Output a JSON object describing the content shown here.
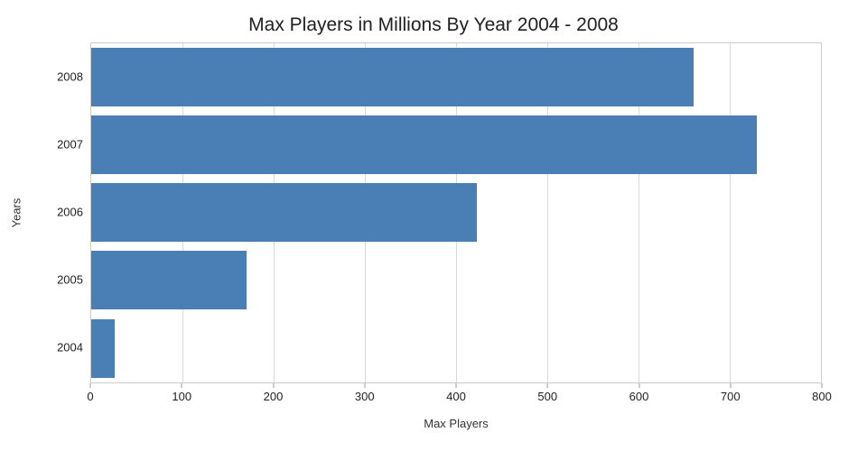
{
  "chart_data": {
    "type": "bar",
    "orientation": "horizontal",
    "title": "Max Players in Millions By Year 2004 - 2008",
    "xlabel": "Max Players",
    "ylabel": "Years",
    "categories": [
      "2008",
      "2007",
      "2006",
      "2005",
      "2004"
    ],
    "values": [
      660,
      730,
      423,
      170,
      26
    ],
    "xlim": [
      0,
      800
    ],
    "xticks": [
      0,
      100,
      200,
      300,
      400,
      500,
      600,
      700,
      800
    ],
    "grid": true,
    "legend": "none",
    "bar_color": "#4a7fb5",
    "grid_color": "#d9d9d9",
    "border_color": "#cccccc",
    "tick_color": "#9b9b9b",
    "text_color": "#1f1f1f"
  }
}
